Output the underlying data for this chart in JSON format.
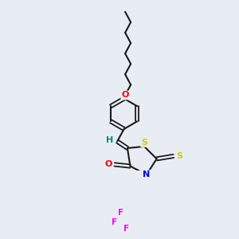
{
  "bg_color": "#e8edf3",
  "line_color": "#1a1a1a",
  "bond_width": 1.5,
  "atom_colors": {
    "O": "#ff0000",
    "N": "#0000ee",
    "S": "#cccc00",
    "F": "#ff00ff",
    "H": "#008888",
    "C": "#1a1a1a"
  },
  "font_size": 7.5,
  "figsize": [
    3.0,
    3.0
  ],
  "dpi": 100
}
